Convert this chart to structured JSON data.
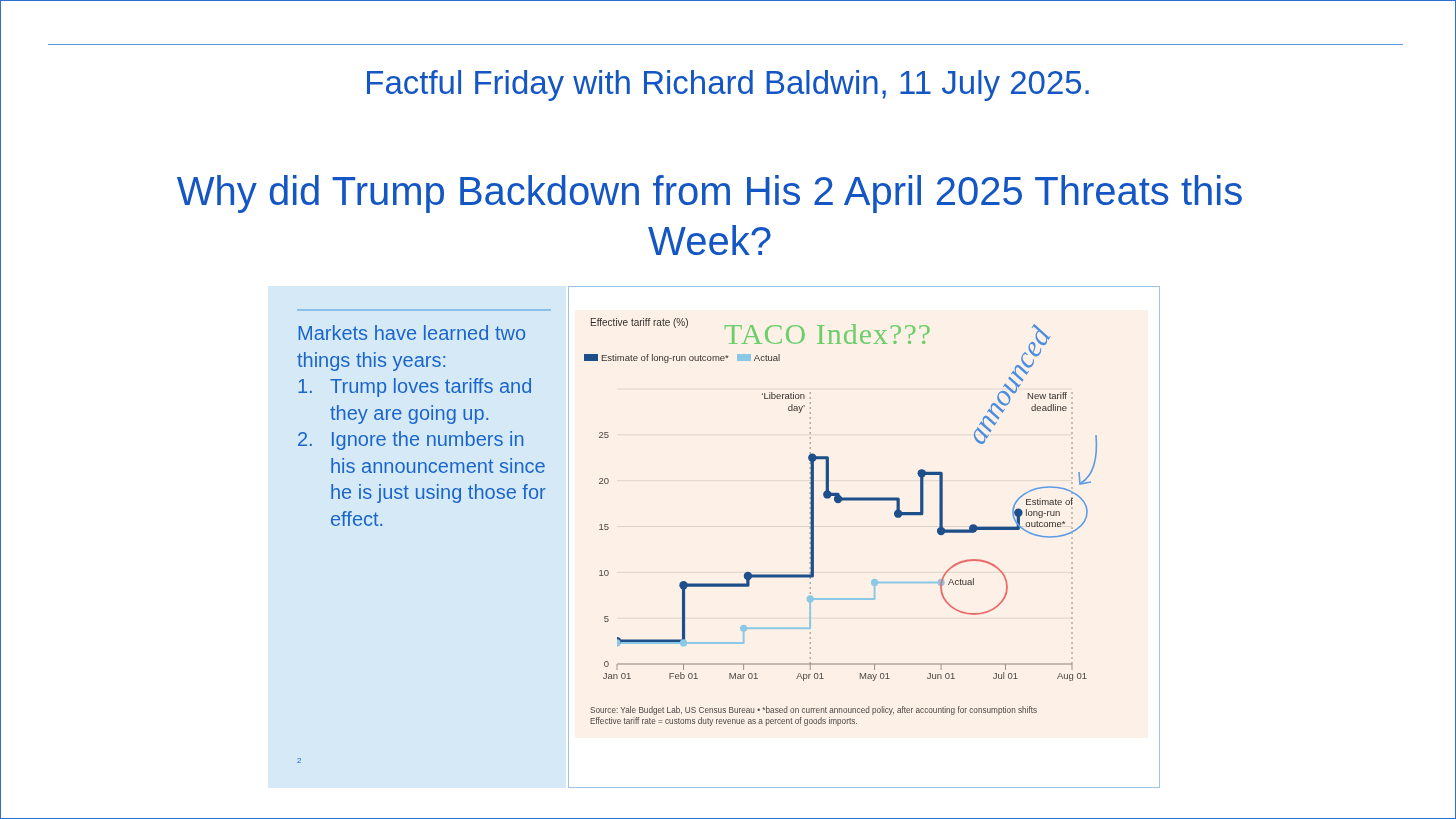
{
  "chart_data": {
    "type": "step",
    "title": "Why did Trump Backdown from His 2 April 2025 Threats this Week?",
    "subtitle": "Factful Friday with Richard Baldwin, 11 July 2025.",
    "series": [
      {
        "name": "Estimate of long-run outcome*",
        "color": "#1d4f8a",
        "x": [
          "--01-01",
          "--02-01",
          "--03-03",
          "--04-02",
          "--04-09",
          "--04-14",
          "--05-12",
          "--05-23",
          "--06-01",
          "--06-16",
          "--07-07"
        ],
        "values": [
          2.5,
          8.6,
          9.6,
          22.5,
          18.5,
          18.0,
          16.4,
          20.8,
          14.5,
          14.8,
          16.5
        ]
      },
      {
        "name": "Actual",
        "color": "#8ac8e6",
        "x": [
          "--01-01",
          "--02-01",
          "--03-01",
          "--04-01",
          "--05-01",
          "--06-01"
        ],
        "values": [
          2.3,
          2.3,
          3.9,
          7.1,
          8.9,
          8.9
        ]
      }
    ],
    "xlim": [
      "--01-01",
      "--08-01"
    ],
    "xticks": [
      {
        "value": "--01-01",
        "label": "Jan 01"
      },
      {
        "value": "--02-01",
        "label": "Feb 01"
      },
      {
        "value": "--03-01",
        "label": "Mar 01"
      },
      {
        "value": "--04-01",
        "label": "Apr 01"
      },
      {
        "value": "--05-01",
        "label": "May 01"
      },
      {
        "value": "--06-01",
        "label": "Jun 01"
      },
      {
        "value": "--07-01",
        "label": "Jul 01"
      },
      {
        "value": "--08-01",
        "label": "Aug 01"
      }
    ],
    "ylim": [
      0,
      30
    ],
    "yticks": [
      0,
      5,
      10,
      15,
      20,
      25
    ],
    "grid": "y",
    "legend": "top left",
    "marker": "circle",
    "line_style": "solid",
    "ref_lines": [
      {
        "axis": "x",
        "value": "--04-01",
        "label": "‘Liberation day’",
        "color": "#888888",
        "line_style": "dotted"
      },
      {
        "axis": "x",
        "value": "--08-01",
        "label": "New tariff deadline",
        "color": "#888888",
        "line_style": "dotted"
      }
    ],
    "annotations": [
      "Markets have learned two things this years:",
      "1. Trump loves tariffs and they are going up.",
      "2. Ignore the numbers in his announcement since he is just using those for effect.",
      "2",
      "TACO Index???",
      "announced",
      "Source: Yale Budget Lab, US Census Bureau • *based on current announced policy, after accounting for consumption shifts",
      "Effective tariff rate = customs duty revenue as a percent of goods imports.",
      "Effective tariff rate (%)"
    ]
  }
}
